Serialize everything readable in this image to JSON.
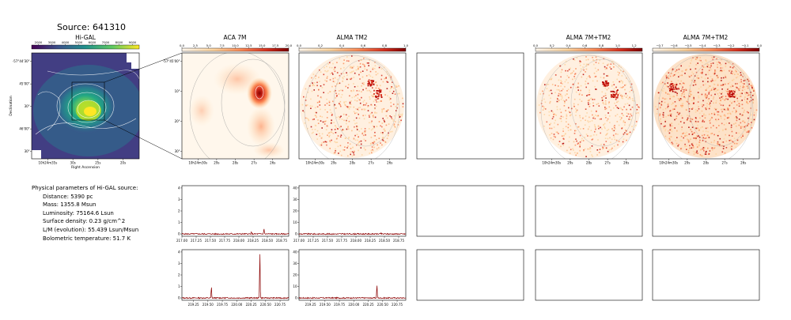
{
  "title": "Source: 641310",
  "params": {
    "heading": "Physical parameters of Hi-GAL source:",
    "distance": "Distance: 5390 pc",
    "mass": "Mass: 1355.8 Msun",
    "luminosity": "Luminosity: 75164.6 Lsun",
    "surface_density": "Surface density: 0.23 g/cm^2",
    "lm": "L/M (evolution): 55.439 Lsun/Msun",
    "tbol": "Bolometric temperature: 51.7 K"
  },
  "colors": {
    "viridis": [
      "#440154",
      "#3b528b",
      "#21918c",
      "#5ec962",
      "#fde725"
    ],
    "orrd": [
      "#fff7ec",
      "#fdd49e",
      "#fc8d59",
      "#d7301f",
      "#7f0000"
    ],
    "spectrum_line": "#8b0000"
  },
  "chart_data": [
    {
      "type": "heatmap",
      "title": "Hi-GAL",
      "colorbar_ticks": [
        "2000",
        "3000",
        "4000",
        "5000",
        "6000",
        "7000",
        "8000",
        "9000"
      ],
      "colorbar_range": [
        1500,
        9500
      ],
      "xlabel": "Right Ascension",
      "ylabel": "Declination",
      "x_ticks": [
        "10h24m35s",
        "30s",
        "25s",
        "20s"
      ],
      "y_ticks": [
        "-57°44'30\"",
        "45'00\"",
        "30\"",
        "46'00\"",
        "30\""
      ]
    },
    {
      "type": "heatmap",
      "title": "ACA 7M",
      "colorbar_ticks": [
        "0.0",
        "2.5",
        "5.0",
        "7.5",
        "10.0",
        "12.5",
        "15.0",
        "17.5",
        "20.0"
      ],
      "colorbar_range": [
        0,
        20
      ],
      "x_ticks": [
        "10h24m30s",
        "29s",
        "28s",
        "27s",
        "26s"
      ],
      "y_ticks": [
        "-57°45'00\"",
        "10\"",
        "20\"",
        "30\""
      ]
    },
    {
      "type": "heatmap",
      "title": "ALMA TM2",
      "colorbar_ticks": [
        "0.0",
        "0.2",
        "0.4",
        "0.6",
        "0.8",
        "1.0"
      ],
      "colorbar_range": [
        0,
        1
      ],
      "x_ticks": [
        "10h24m30s",
        "29s",
        "28s",
        "27s",
        "26s"
      ]
    },
    {
      "type": "heatmap",
      "title": "",
      "empty": true
    },
    {
      "type": "heatmap",
      "title": "ALMA 7M+TM2",
      "colorbar_ticks": [
        "0.0",
        "0.2",
        "0.4",
        "0.6",
        "0.8",
        "1.0",
        "1.2"
      ],
      "colorbar_range": [
        0,
        1.3
      ],
      "x_ticks": [
        "10h24m30s",
        "29s",
        "28s",
        "27s",
        "26s"
      ]
    },
    {
      "type": "heatmap",
      "title": "ALMA 7M+TM2",
      "colorbar_ticks": [
        "−0.7",
        "−0.6",
        "−0.5",
        "−0.4",
        "−0.3",
        "−0.2",
        "−0.1",
        "0.0"
      ],
      "colorbar_range": [
        -0.75,
        0
      ],
      "x_ticks": [
        "10h24m30s",
        "29s",
        "28s",
        "27s",
        "26s"
      ]
    },
    {
      "type": "line",
      "title": "",
      "x_ticks": [
        "217.00",
        "217.25",
        "217.50",
        "217.75",
        "218.00",
        "218.25",
        "218.50",
        "218.75"
      ],
      "xlim": [
        217.0,
        218.875
      ],
      "y_ticks": [
        "0",
        "1",
        "2",
        "3",
        "4"
      ],
      "ylim": [
        -0.2,
        4.2
      ],
      "peaks": [
        {
          "x": 218.44,
          "y": 0.5
        },
        {
          "x": 218.22,
          "y": 0.15
        }
      ]
    },
    {
      "type": "line",
      "title": "",
      "x_ticks": [
        "217.00",
        "217.25",
        "217.50",
        "217.75",
        "218.00",
        "218.25",
        "218.50",
        "218.75"
      ],
      "xlim": [
        217.0,
        218.875
      ],
      "y_ticks": [
        "0",
        "10",
        "20",
        "30",
        "40"
      ],
      "ylim": [
        -2,
        42
      ],
      "peaks": [
        {
          "x": 218.44,
          "y": 0.5
        }
      ]
    },
    {
      "type": "line",
      "title": "",
      "x_ticks": [
        "219.25",
        "219.50",
        "219.75",
        "220.00",
        "220.25",
        "220.50",
        "220.75"
      ],
      "xlim": [
        219.05,
        220.9
      ],
      "y_ticks": [
        "0",
        "1",
        "2",
        "3",
        "4"
      ],
      "ylim": [
        -0.2,
        4.2
      ],
      "peaks": [
        {
          "x": 219.56,
          "y": 1.0
        },
        {
          "x": 220.4,
          "y": 4.2
        }
      ]
    },
    {
      "type": "line",
      "title": "",
      "x_ticks": [
        "219.25",
        "219.50",
        "219.75",
        "220.00",
        "220.25",
        "220.50",
        "220.75"
      ],
      "xlim": [
        219.05,
        220.9
      ],
      "y_ticks": [
        "0",
        "10",
        "20",
        "30",
        "40"
      ],
      "ylim": [
        -2,
        42
      ],
      "peaks": [
        {
          "x": 220.4,
          "y": 12.0
        },
        {
          "x": 219.56,
          "y": 0.5
        }
      ]
    }
  ]
}
